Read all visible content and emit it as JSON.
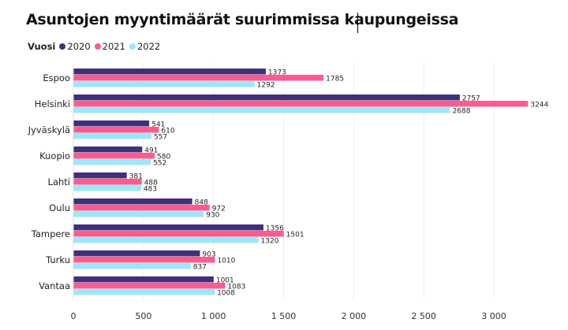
{
  "chart_data": {
    "type": "bar",
    "orientation": "horizontal",
    "title": "Asuntojen myyntimäärät suurimmissa kaupungeissa",
    "legend_title": "Vuosi",
    "legend_position": "top-left",
    "categories": [
      "Espoo",
      "Helsinki",
      "Jyväskylä",
      "Kuopio",
      "Lahti",
      "Oulu",
      "Tampere",
      "Turku",
      "Vantaa"
    ],
    "series": [
      {
        "name": "2020",
        "color": "#40307a",
        "values": [
          1373,
          2757,
          541,
          491,
          381,
          848,
          1356,
          903,
          1001
        ]
      },
      {
        "name": "2021",
        "color": "#ff5a8f",
        "values": [
          1785,
          3244,
          610,
          580,
          488,
          972,
          1501,
          1010,
          1083
        ]
      },
      {
        "name": "2022",
        "color": "#9de6fb",
        "values": [
          1292,
          2688,
          557,
          552,
          483,
          930,
          1320,
          837,
          1008
        ]
      }
    ],
    "xlim": [
      0,
      3300
    ],
    "xticks": [
      0,
      500,
      1000,
      1500,
      2000,
      2500,
      3000
    ],
    "xtick_labels": [
      "0",
      "500",
      "1 000",
      "1 500",
      "2 000",
      "2 500",
      "3 000"
    ],
    "xlabel": "",
    "ylabel": "",
    "grid": true
  }
}
